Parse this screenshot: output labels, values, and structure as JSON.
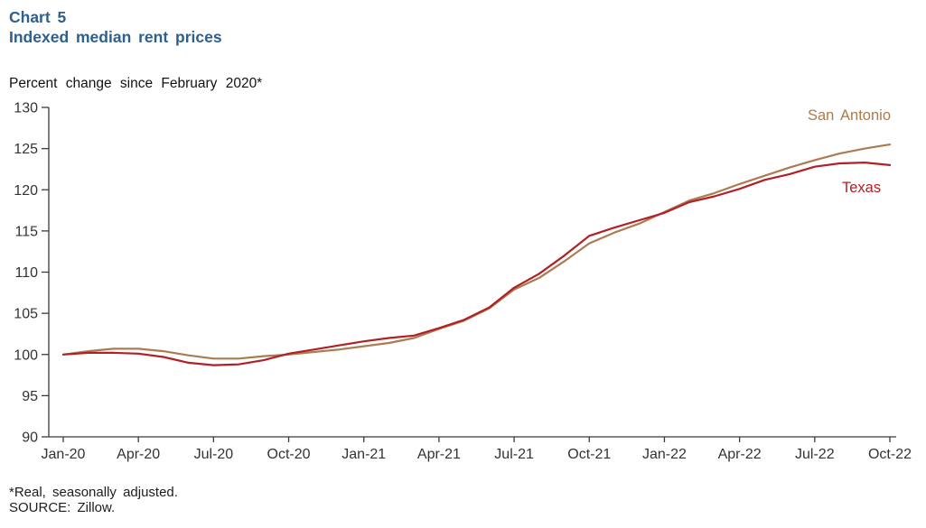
{
  "header": {
    "chart_number": "Chart 5",
    "title": "Indexed median rent prices",
    "subtitle": "Percent change since February 2020*"
  },
  "footer": {
    "footnote": "*Real, seasonally adjusted.",
    "source": "SOURCE: Zillow."
  },
  "colors": {
    "title_blue": "#2f5f8c",
    "axis": "#3a3a3a",
    "tick_text": "#333333"
  },
  "chart_data": {
    "type": "line",
    "title": "Indexed median rent prices",
    "ylabel": "Percent change since February 2020*",
    "xlabel": "",
    "ylim": [
      90,
      130
    ],
    "ytick_step": 5,
    "grid": false,
    "legend_position": "inline-end-labels",
    "x": [
      "Jan-20",
      "Feb-20",
      "Mar-20",
      "Apr-20",
      "May-20",
      "Jun-20",
      "Jul-20",
      "Aug-20",
      "Sep-20",
      "Oct-20",
      "Nov-20",
      "Dec-20",
      "Jan-21",
      "Feb-21",
      "Mar-21",
      "Apr-21",
      "May-21",
      "Jun-21",
      "Jul-21",
      "Aug-21",
      "Sep-21",
      "Oct-21",
      "Nov-21",
      "Dec-21",
      "Jan-22",
      "Feb-22",
      "Mar-22",
      "Apr-22",
      "May-22",
      "Jun-22",
      "Jul-22",
      "Aug-22",
      "Sep-22",
      "Oct-22"
    ],
    "x_tick_labels": [
      "Jan-20",
      "Apr-20",
      "Jul-20",
      "Oct-20",
      "Jan-21",
      "Apr-21",
      "Jul-21",
      "Oct-21",
      "Jan-22",
      "Apr-22",
      "Jul-22",
      "Oct-22"
    ],
    "series": [
      {
        "name": "San Antonio",
        "color": "#ab7b51",
        "values": [
          100.0,
          100.4,
          100.7,
          100.7,
          100.4,
          99.9,
          99.5,
          99.5,
          99.8,
          100.0,
          100.3,
          100.6,
          101.0,
          101.4,
          102.0,
          103.1,
          104.1,
          105.6,
          107.9,
          109.3,
          111.3,
          113.5,
          114.8,
          115.9,
          117.3,
          118.7,
          119.6,
          120.7,
          121.7,
          122.7,
          123.6,
          124.4,
          125.0,
          125.5
        ]
      },
      {
        "name": "Texas",
        "color": "#b22025",
        "values": [
          100.0,
          100.2,
          100.2,
          100.1,
          99.7,
          99.0,
          98.7,
          98.8,
          99.3,
          100.1,
          100.6,
          101.1,
          101.6,
          102.0,
          102.3,
          103.2,
          104.2,
          105.7,
          108.1,
          109.8,
          112.0,
          114.4,
          115.4,
          116.3,
          117.2,
          118.5,
          119.2,
          120.1,
          121.2,
          121.9,
          122.8,
          123.2,
          123.3,
          123.0
        ]
      }
    ]
  }
}
